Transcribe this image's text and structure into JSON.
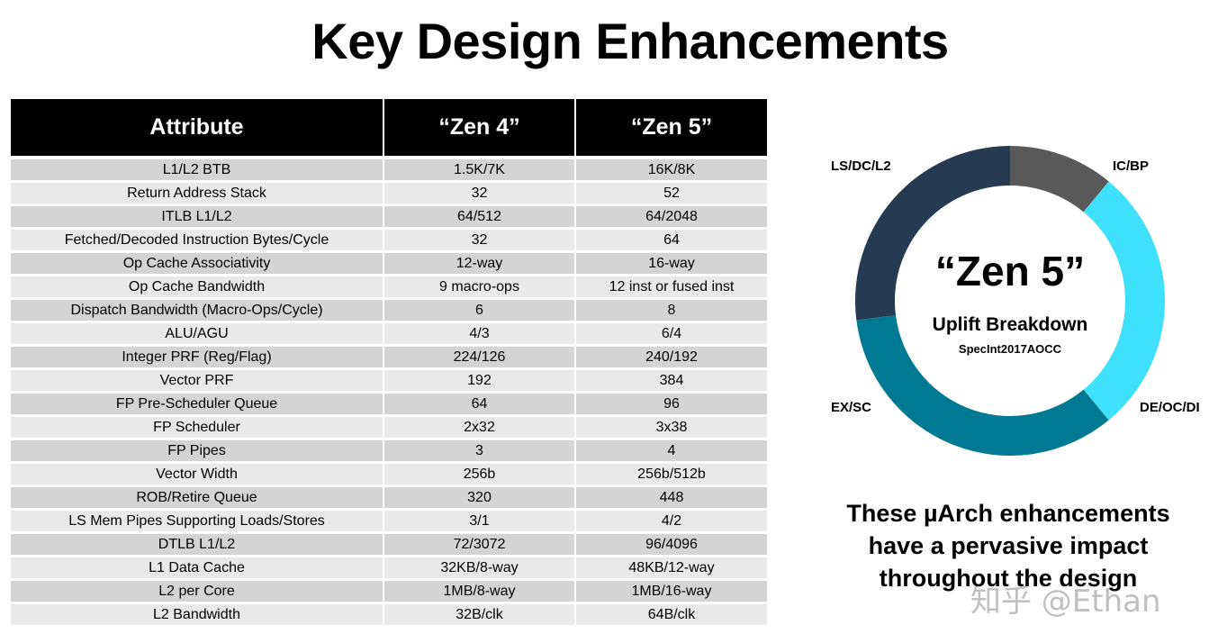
{
  "title": "Key Design Enhancements",
  "table": {
    "headers": [
      "Attribute",
      "“Zen 4”",
      "“Zen 5”"
    ],
    "rows": [
      [
        "L1/L2 BTB",
        "1.5K/7K",
        "16K/8K"
      ],
      [
        "Return Address Stack",
        "32",
        "52"
      ],
      [
        "ITLB L1/L2",
        "64/512",
        "64/2048"
      ],
      [
        "Fetched/Decoded Instruction Bytes/Cycle",
        "32",
        "64"
      ],
      [
        "Op Cache Associativity",
        "12-way",
        "16-way"
      ],
      [
        "Op Cache Bandwidth",
        "9 macro-ops",
        "12 inst or fused inst"
      ],
      [
        "Dispatch Bandwidth (Macro-Ops/Cycle)",
        "6",
        "8"
      ],
      [
        "ALU/AGU",
        "4/3",
        "6/4"
      ],
      [
        "Integer PRF (Reg/Flag)",
        "224/126",
        "240/192"
      ],
      [
        "Vector PRF",
        "192",
        "384"
      ],
      [
        "FP Pre-Scheduler Queue",
        "64",
        "96"
      ],
      [
        "FP Scheduler",
        "2x32",
        "3x38"
      ],
      [
        "FP Pipes",
        "3",
        "4"
      ],
      [
        "Vector Width",
        "256b",
        "256b/512b"
      ],
      [
        "ROB/Retire Queue",
        "320",
        "448"
      ],
      [
        "LS Mem Pipes Supporting Loads/Stores",
        "3/1",
        "4/2"
      ],
      [
        "DTLB L1/L2",
        "72/3072",
        "96/4096"
      ],
      [
        "L1 Data Cache",
        "32KB/8-way",
        "48KB/12-way"
      ],
      [
        "L2 per Core",
        "1MB/8-way",
        "1MB/16-way"
      ],
      [
        "L2 Bandwidth",
        "32B/clk",
        "64B/clk"
      ]
    ]
  },
  "chart_data": {
    "type": "pie",
    "title": "“Zen 5”",
    "subtitle": "Uplift Breakdown",
    "caption": "SpecInt2017AOCC",
    "slices": [
      {
        "label": "IC/BP",
        "value": 11,
        "color": "#595959"
      },
      {
        "label": "DE/OC/DI",
        "value": 28,
        "color": "#3fe0fb"
      },
      {
        "label": "EX/SC",
        "value": 34,
        "color": "#007a92"
      },
      {
        "label": "LS/DC/L2",
        "value": 27,
        "color": "#263a52"
      }
    ]
  },
  "note": {
    "lines": [
      "These µArch enhancements",
      "have a pervasive impact",
      "throughout the design"
    ]
  },
  "watermark": "知乎 @Ethan"
}
